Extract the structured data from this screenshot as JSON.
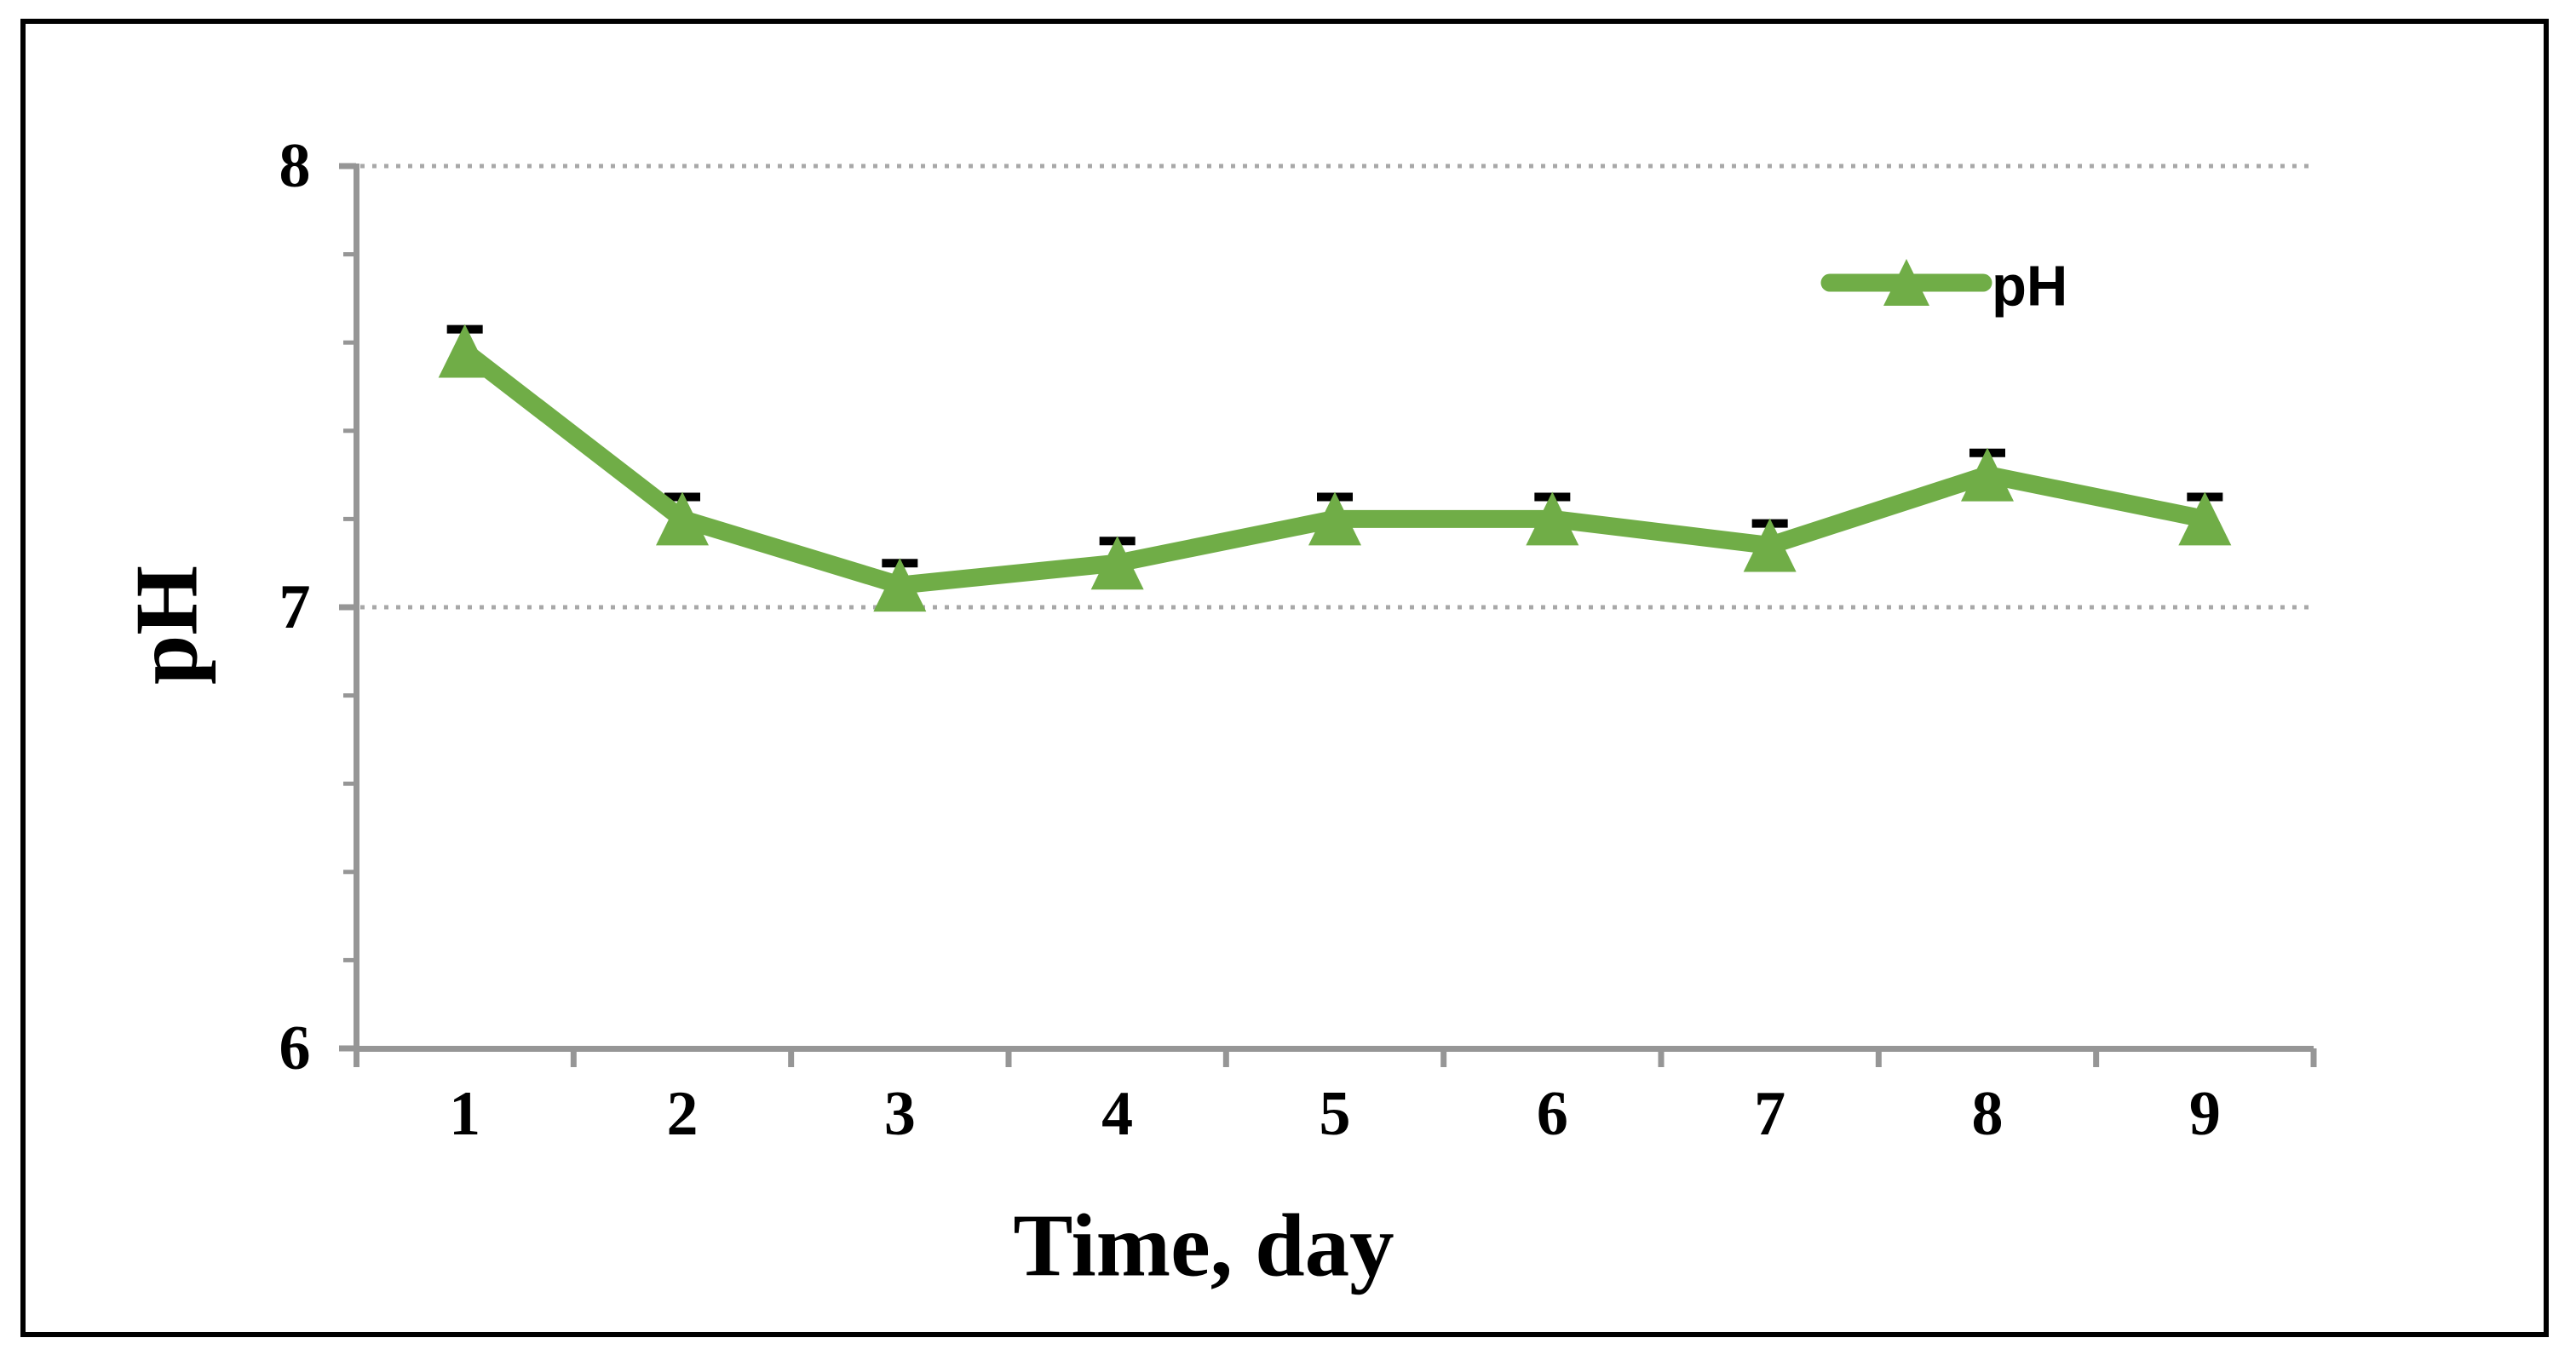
{
  "chart_data": {
    "type": "line",
    "title": "",
    "xlabel": "Time, day",
    "ylabel": "pH",
    "categories": [
      "1",
      "2",
      "3",
      "4",
      "5",
      "6",
      "7",
      "8",
      "9"
    ],
    "series": [
      {
        "name": "pH",
        "values": [
          7.58,
          7.2,
          7.05,
          7.1,
          7.2,
          7.2,
          7.14,
          7.3,
          7.2
        ],
        "upper_error_caps": [
          7.63,
          7.25,
          7.1,
          7.15,
          7.25,
          7.25,
          7.19,
          7.35,
          7.25
        ],
        "error_bar": 0.05,
        "marker": "triangle"
      }
    ],
    "y_ticks": [
      "8",
      "7",
      "6"
    ],
    "y_tick_values": [
      8,
      7,
      6
    ],
    "y_minor_tick_values": [
      7.8,
      7.6,
      7.4,
      7.2,
      6.8,
      6.6,
      6.4,
      6.2
    ],
    "ylim": [
      6,
      8
    ],
    "gridlines_at": [
      8,
      7
    ],
    "grid_style": "dotted horizontal",
    "legend": {
      "label": "pH",
      "position": "top-right",
      "border": "none"
    }
  },
  "colors": {
    "series_green": "#70AD47",
    "axis_gray": "#969696",
    "gridline_gray": "#A8A8A8",
    "error_bar_black": "#000000",
    "text_black": "#000000",
    "frame_black": "#000000",
    "background": "#FFFFFF"
  }
}
